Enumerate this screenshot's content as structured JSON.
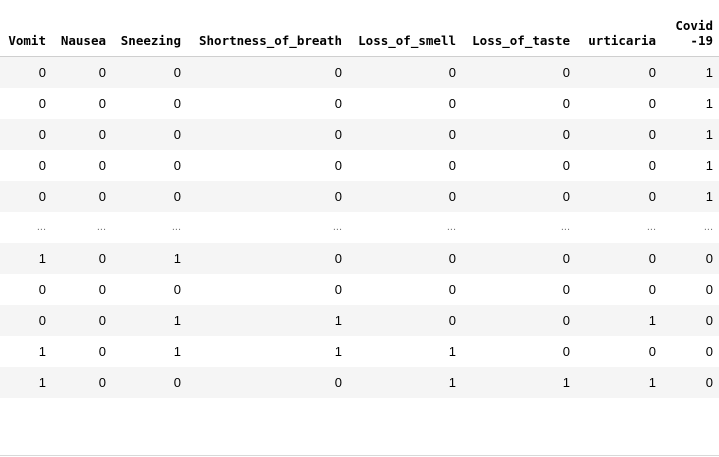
{
  "table": {
    "columns": [
      "Vomit",
      "Nausea",
      "Sneezing",
      "Shortness_of_breath",
      "Loss_of_smell",
      "Loss_of_taste",
      "urticaria",
      "Covid-19"
    ],
    "rows": [
      [
        "0",
        "0",
        "0",
        "0",
        "0",
        "0",
        "0",
        "1"
      ],
      [
        "0",
        "0",
        "0",
        "0",
        "0",
        "0",
        "0",
        "1"
      ],
      [
        "0",
        "0",
        "0",
        "0",
        "0",
        "0",
        "0",
        "1"
      ],
      [
        "0",
        "0",
        "0",
        "0",
        "0",
        "0",
        "0",
        "1"
      ],
      [
        "0",
        "0",
        "0",
        "0",
        "0",
        "0",
        "0",
        "1"
      ],
      [
        "...",
        "...",
        "...",
        "...",
        "...",
        "...",
        "...",
        "..."
      ],
      [
        "1",
        "0",
        "1",
        "0",
        "0",
        "0",
        "0",
        "0"
      ],
      [
        "0",
        "0",
        "0",
        "0",
        "0",
        "0",
        "0",
        "0"
      ],
      [
        "0",
        "0",
        "1",
        "1",
        "0",
        "0",
        "1",
        "0"
      ],
      [
        "1",
        "0",
        "1",
        "1",
        "1",
        "0",
        "0",
        "0"
      ],
      [
        "1",
        "0",
        "0",
        "0",
        "1",
        "1",
        "1",
        "0"
      ]
    ]
  }
}
